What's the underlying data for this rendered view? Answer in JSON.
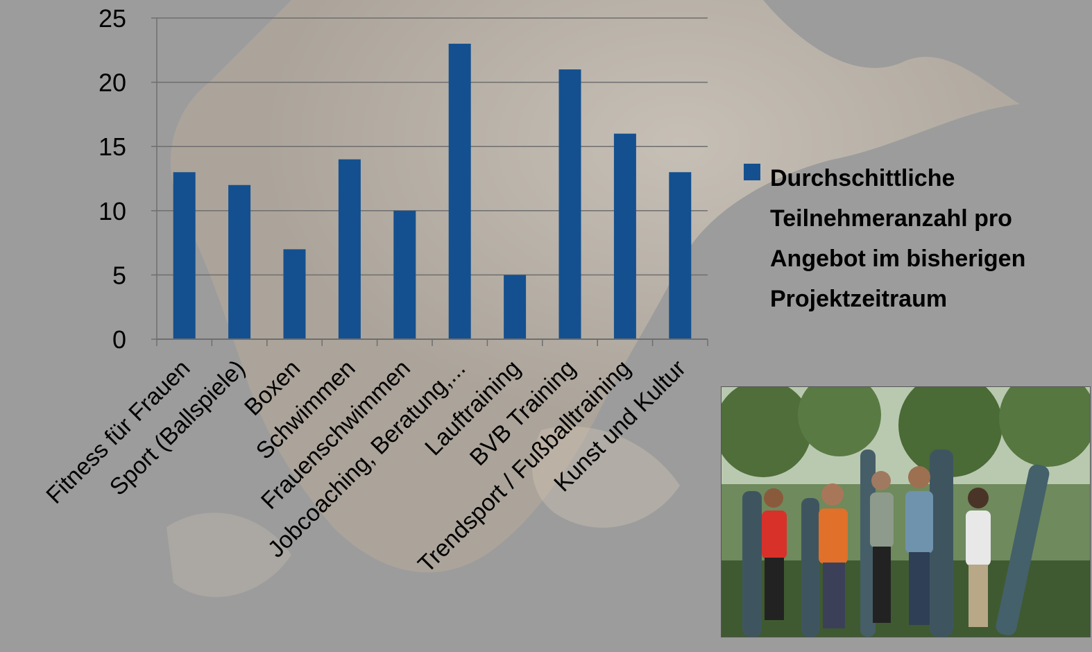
{
  "chart_data": {
    "type": "bar",
    "categories": [
      "Fitness für Frauen",
      "Sport (Ballspiele)",
      "Boxen",
      "Schwimmen",
      "Frauenschwimmen",
      "Jobcoaching, Beratung,...",
      "Lauftraining",
      "BVB Training",
      "Trendsport / Fußballtraining",
      "Kunst und Kultur"
    ],
    "series": [
      {
        "name": "Durchschittliche Teilnehmeranzahl pro Angebot im bisherigen Projektzeitraum",
        "values": [
          13,
          12,
          7,
          14,
          10,
          23,
          5,
          21,
          16,
          13
        ]
      }
    ],
    "ylim": [
      0,
      25
    ],
    "yticks": [
      0,
      5,
      10,
      15,
      20,
      25
    ],
    "grid": true,
    "legend_position": "right",
    "bar_color": "#14508f"
  },
  "photo": {
    "description_icon": "group-photo-icon"
  }
}
